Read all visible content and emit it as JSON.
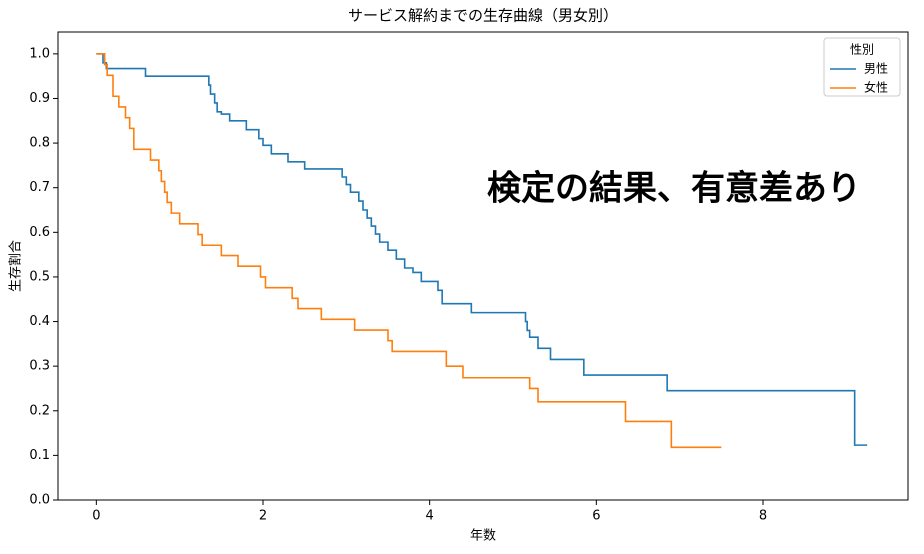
{
  "chart_data": {
    "type": "line",
    "step": "post",
    "title": "サービス解約までの生存曲線（男女別）",
    "xlabel": "年数",
    "ylabel": "生存割合",
    "annotation": "検定の結果、有意差あり",
    "annotation_color": "#ff0000",
    "legend_title": "性別",
    "legend": "upper right",
    "xlim": [
      -0.46,
      9.74
    ],
    "ylim": [
      0,
      1.049
    ],
    "xticks": [
      0,
      2,
      4,
      6,
      8
    ],
    "yticks": [
      {
        "value": 0,
        "label": "0.0"
      },
      0.1,
      0.2,
      0.3,
      0.4,
      0.5,
      0.6,
      0.7,
      0.8,
      0.9,
      {
        "value": 1,
        "label": "1.0"
      }
    ],
    "series": [
      {
        "name": "男性",
        "color": "#1f77b4",
        "x": [
          0,
          0.08,
          0.12,
          0.59,
          1.35,
          1.37,
          1.42,
          1.45,
          1.5,
          1.6,
          1.8,
          1.95,
          2.0,
          2.1,
          2.3,
          2.5,
          2.95,
          3.0,
          3.05,
          3.15,
          3.2,
          3.25,
          3.3,
          3.35,
          3.4,
          3.5,
          3.6,
          3.7,
          3.8,
          3.9,
          4.1,
          4.15,
          4.5,
          5.15,
          5.17,
          5.2,
          5.3,
          5.45,
          5.85,
          6.85,
          9.1,
          9.25
        ],
        "values": [
          1.0,
          0.98,
          0.967,
          0.95,
          0.93,
          0.91,
          0.89,
          0.87,
          0.865,
          0.85,
          0.83,
          0.81,
          0.795,
          0.776,
          0.758,
          0.742,
          0.724,
          0.707,
          0.69,
          0.67,
          0.65,
          0.632,
          0.614,
          0.596,
          0.578,
          0.56,
          0.54,
          0.52,
          0.51,
          0.49,
          0.47,
          0.44,
          0.42,
          0.4,
          0.38,
          0.365,
          0.34,
          0.315,
          0.28,
          0.245,
          0.123,
          0.123
        ]
      },
      {
        "name": "女性",
        "color": "#ff7f0e",
        "x": [
          0,
          0.1,
          0.13,
          0.2,
          0.27,
          0.35,
          0.4,
          0.45,
          0.65,
          0.75,
          0.78,
          0.82,
          0.85,
          0.9,
          1.0,
          1.22,
          1.27,
          1.5,
          1.7,
          1.97,
          2.03,
          2.35,
          2.42,
          2.7,
          3.1,
          3.5,
          3.55,
          4.2,
          4.4,
          5.2,
          5.3,
          6.35,
          6.9,
          7.5
        ],
        "values": [
          1.0,
          0.976,
          0.952,
          0.905,
          0.881,
          0.857,
          0.833,
          0.786,
          0.762,
          0.738,
          0.714,
          0.69,
          0.667,
          0.643,
          0.619,
          0.595,
          0.571,
          0.548,
          0.524,
          0.5,
          0.476,
          0.452,
          0.429,
          0.405,
          0.381,
          0.357,
          0.333,
          0.3,
          0.274,
          0.25,
          0.22,
          0.176,
          0.118,
          0.118
        ]
      }
    ]
  }
}
